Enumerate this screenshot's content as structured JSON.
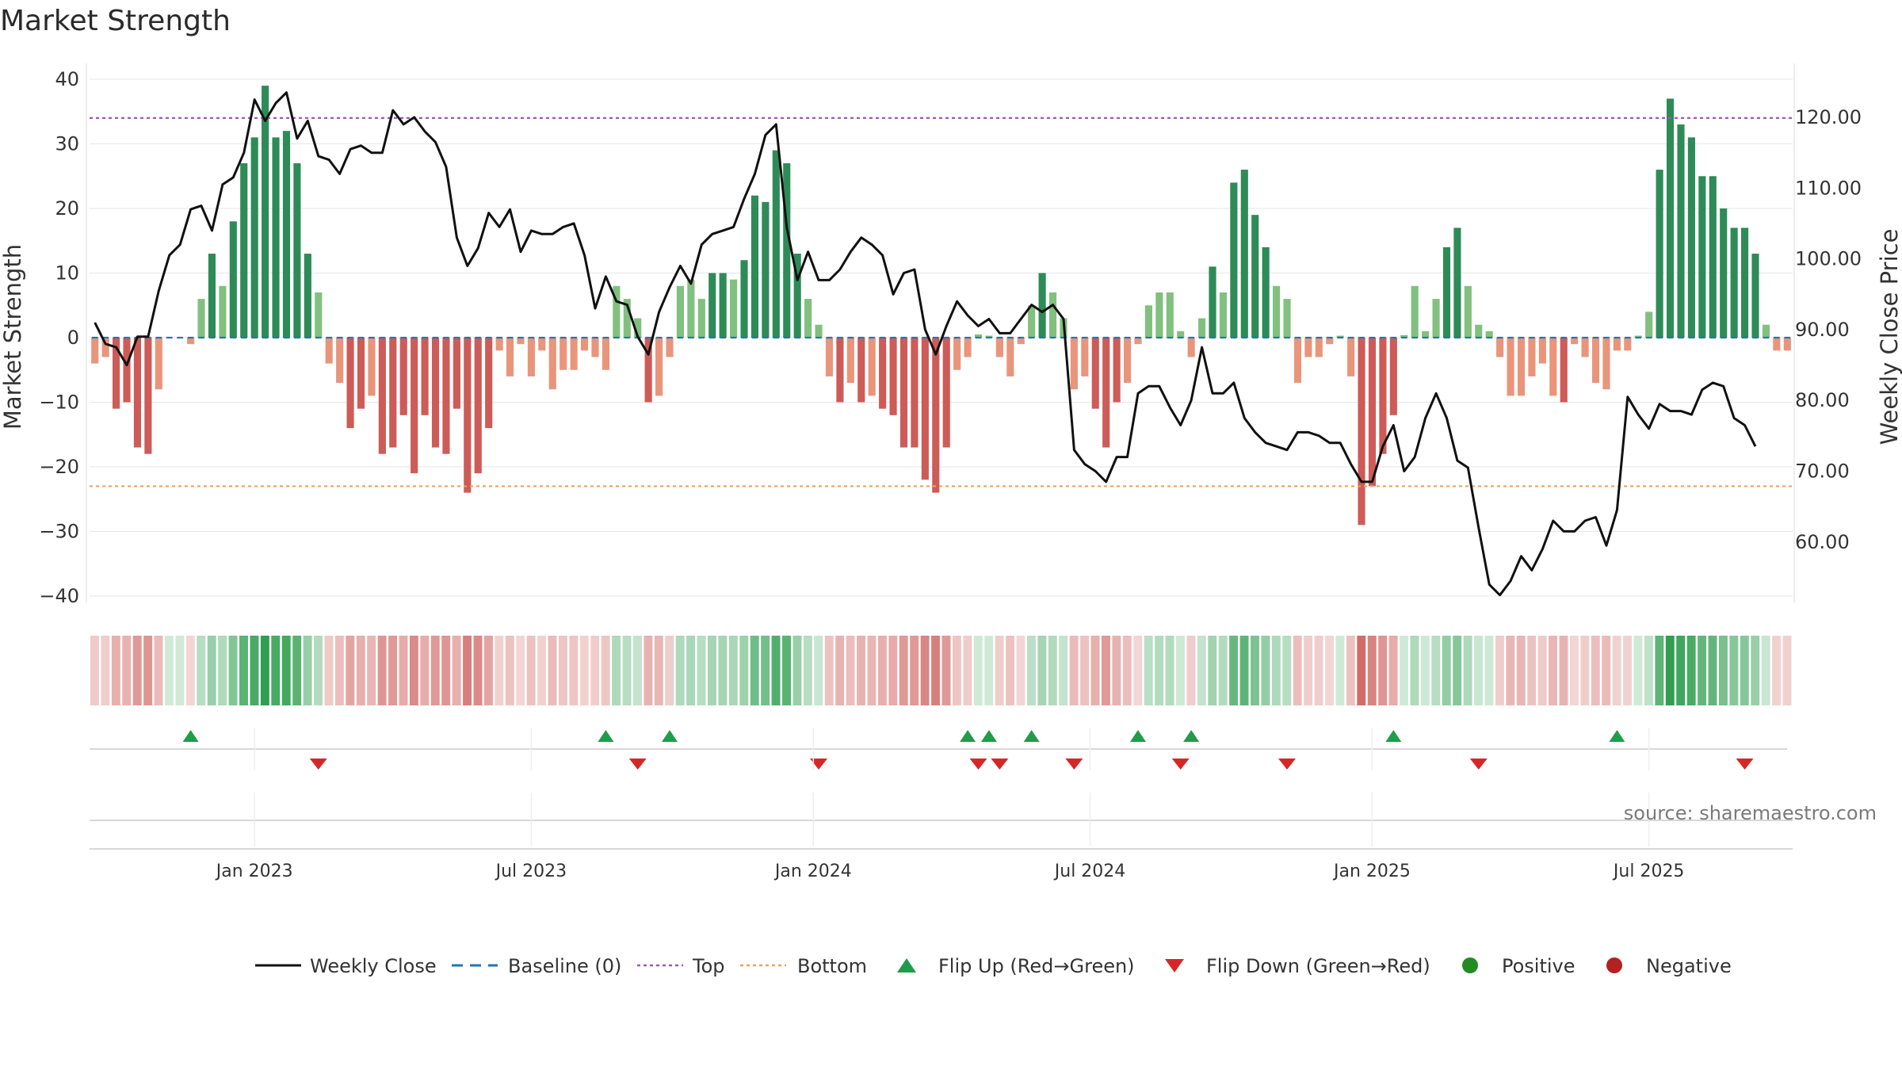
{
  "chart_data": {
    "type": "bar",
    "title": "Market Strength",
    "ylabel": "Market Strength",
    "y2label": "Weekly Close Price",
    "ylim": [
      -45,
      43
    ],
    "y2lim": [
      49.5,
      125.6
    ],
    "yticks": [
      40,
      30,
      20,
      10,
      0,
      -10,
      -20,
      -30,
      -40
    ],
    "yticklabels": [
      "40",
      "30",
      "20",
      "10",
      "0",
      "−10",
      "−20",
      "−30",
      "−40"
    ],
    "y2ticks": [
      120,
      110,
      100,
      90,
      80,
      70,
      60
    ],
    "y2ticklabels": [
      "120.00",
      "110.00",
      "100.00",
      "90.00",
      "80.00",
      "70.00",
      "60.00"
    ],
    "top_line": 34,
    "bottom_line": -23,
    "xticks": [
      {
        "week": 15,
        "label": "Jan 2023"
      },
      {
        "week": 41,
        "label": "Jul 2023"
      },
      {
        "week": 67.5,
        "label": "Jan 2024"
      },
      {
        "week": 93.5,
        "label": "Jul 2024"
      },
      {
        "week": 120,
        "label": "Jan 2025"
      },
      {
        "week": 146,
        "label": "Jul 2025"
      }
    ],
    "strength": [
      -4,
      -3,
      -11,
      -10,
      -17,
      -18,
      -8,
      0,
      0,
      -1,
      6,
      13,
      8,
      18,
      27,
      31,
      39,
      31,
      32,
      27,
      13,
      7,
      -4,
      -7,
      -14,
      -11,
      -9,
      -18,
      -17,
      -12,
      -21,
      -12,
      -17,
      -18,
      -11,
      -24,
      -21,
      -14,
      -2,
      -6,
      -1,
      -6,
      -2,
      -8,
      -5,
      -5,
      -2,
      -3,
      -5,
      8,
      6,
      3,
      -10,
      -9,
      -3,
      8,
      9,
      6,
      10,
      10,
      9,
      12,
      22,
      21,
      29,
      27,
      13,
      6,
      2,
      -6,
      -10,
      -7,
      -10,
      -9,
      -11,
      -12,
      -17,
      -17,
      -22,
      -24,
      -17,
      -5,
      -3,
      0.5,
      0.3,
      -3,
      -6,
      -1,
      5,
      10,
      7,
      3,
      -8,
      -6,
      -11,
      -17,
      -10,
      -7,
      -1,
      5,
      7,
      7,
      1,
      -3,
      3,
      11,
      7,
      24,
      26,
      19,
      14,
      8,
      6,
      -7,
      -3,
      -3,
      -1,
      0.3,
      -6,
      -29,
      -23,
      -18,
      -12,
      0.4,
      8,
      1,
      6,
      14,
      17,
      8,
      2,
      1,
      -3,
      -9,
      -9,
      -6,
      -4,
      -9,
      -10,
      -1,
      -3,
      -7,
      -8,
      -2,
      -2,
      0.3,
      4,
      26,
      37,
      33,
      31,
      25,
      25,
      20,
      17,
      17,
      13,
      2,
      -2,
      -2
    ],
    "close": [
      91,
      88,
      87.5,
      85,
      89,
      89,
      95.5,
      100.5,
      102,
      107,
      107.5,
      104,
      110.5,
      111.5,
      115,
      122.5,
      119.5,
      122,
      123.5,
      117,
      119.5,
      114.5,
      114,
      112,
      115.5,
      116,
      115,
      115,
      121,
      119,
      120,
      118,
      116.5,
      113,
      103,
      99,
      101.5,
      106.5,
      104.5,
      107,
      101,
      104,
      103.5,
      103.5,
      104.5,
      105,
      100.5,
      93,
      97.5,
      94,
      93.5,
      89,
      86.5,
      92.5,
      96,
      99,
      96.5,
      102,
      103.5,
      104,
      104.5,
      108.5,
      112,
      117.5,
      119,
      104.5,
      97,
      101,
      97,
      97,
      98.5,
      101,
      103,
      102,
      100.5,
      95,
      98,
      98.5,
      90,
      86.5,
      90.5,
      94,
      92,
      90.5,
      91.5,
      89.5,
      89.5,
      91.5,
      93.5,
      92.5,
      93.5,
      91.5,
      73,
      71,
      70,
      68.5,
      72,
      72,
      81,
      82,
      82,
      79,
      76.5,
      80,
      87.5,
      81,
      81,
      82.5,
      77.5,
      75.5,
      74,
      73.5,
      73,
      75.5,
      75.5,
      75,
      74,
      74,
      71,
      68.5,
      68.5,
      73.5,
      76.5,
      70,
      72,
      77.5,
      81,
      77.5,
      71.5,
      70.5,
      62,
      54,
      52.5,
      54.5,
      58,
      56,
      59,
      63,
      61.5,
      61.5,
      63,
      63.5,
      59.5,
      64.5,
      80.5,
      78,
      76,
      79.5,
      78.5,
      78.5,
      78,
      81.5,
      82.5,
      82,
      77.5,
      76.5,
      73.5
    ],
    "flip_up_weeks": [
      9,
      48,
      54,
      82,
      84,
      88,
      98,
      103,
      122,
      143
    ],
    "flip_down_weeks": [
      21,
      51,
      68,
      83,
      85,
      92,
      102,
      112,
      130,
      155
    ],
    "legend": [
      "Weekly Close",
      "Baseline (0)",
      "Top",
      "Bottom",
      "Flip Up (Red→Green)",
      "Flip Down (Green→Red)",
      "Positive",
      "Negative"
    ],
    "colors": {
      "pos_dark": "#2e8b57",
      "pos_light": "#82c07f",
      "neg_dark": "#cd5b57",
      "neg_light": "#e9957b",
      "line": "#111111",
      "baseline": "#1f77b4",
      "top": "#9b59b6",
      "bottom": "#f0a060",
      "flip_up": "#1f9d4a",
      "flip_down": "#d62728",
      "positive_dot": "#228b22",
      "negative_dot": "#b22222"
    }
  },
  "source": "source: sharemaestro.com"
}
